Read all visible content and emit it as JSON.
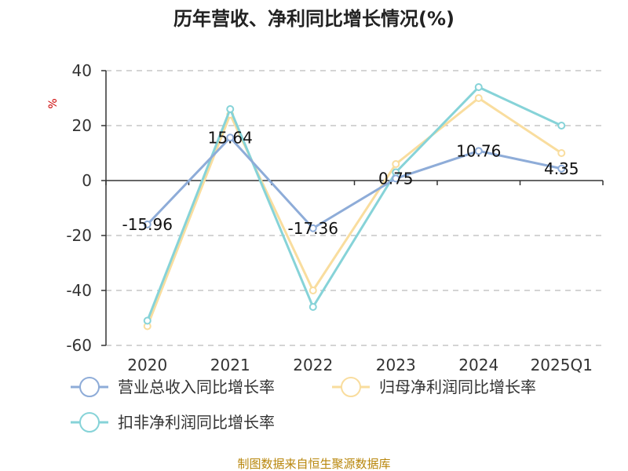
{
  "chart_data": {
    "type": "line",
    "title": "历年营收、净利同比增长情况(%)",
    "ylabel": "%",
    "categories": [
      "2020",
      "2021",
      "2022",
      "2023",
      "2024",
      "2025Q1"
    ],
    "ylim": [
      -60,
      40
    ],
    "yticks": [
      40,
      20,
      0,
      -20,
      -40,
      -60
    ],
    "grid": true,
    "legend_position": "bottom",
    "series": [
      {
        "name": "营业总收入同比增长率",
        "color": "#8eacd8",
        "values": [
          -15.96,
          15.64,
          -17.36,
          0.75,
          10.76,
          4.35
        ],
        "labels": [
          "-15.96",
          "15.64",
          "-17.36",
          "0.75",
          "10.76",
          "4.35"
        ]
      },
      {
        "name": "归母净利润同比增长率",
        "color": "#f9dd9e",
        "values": [
          -53,
          24,
          -40,
          6,
          30,
          10
        ]
      },
      {
        "name": "扣非净利润同比增长率",
        "color": "#86d3d8",
        "values": [
          -51,
          26,
          -46,
          3,
          34,
          20
        ]
      }
    ],
    "source": "制图数据来自恒生聚源数据库"
  }
}
